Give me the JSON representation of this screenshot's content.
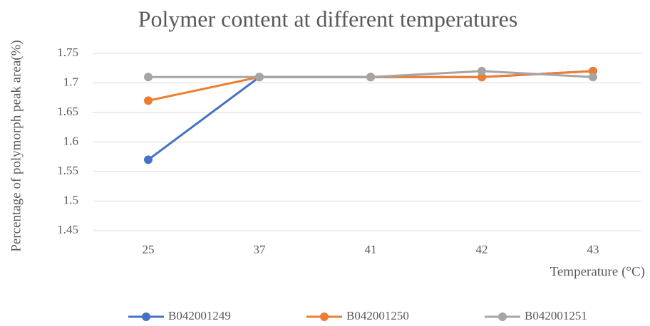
{
  "chart_data": {
    "type": "line",
    "title": "Polymer content at different temperatures",
    "x_label": "Temperature (°C)",
    "y_label": "Percentage of polymorph peak area(%)",
    "categories": [
      "25",
      "37",
      "41",
      "42",
      "43"
    ],
    "series": [
      {
        "name": "B042001249",
        "color": "#4472c4",
        "values": [
          1.57,
          1.71,
          1.71,
          1.71,
          1.72
        ]
      },
      {
        "name": "B042001250",
        "color": "#ed7d31",
        "values": [
          1.67,
          1.71,
          1.71,
          1.71,
          1.72
        ]
      },
      {
        "name": "B042001251",
        "color": "#a5a5a5",
        "values": [
          1.71,
          1.71,
          1.71,
          1.72,
          1.71
        ]
      }
    ],
    "ylim": [
      1.45,
      1.75
    ],
    "yticks": [
      1.45,
      1.5,
      1.55,
      1.6,
      1.65,
      1.7,
      1.75
    ],
    "grid": true,
    "legend": "bottom"
  }
}
